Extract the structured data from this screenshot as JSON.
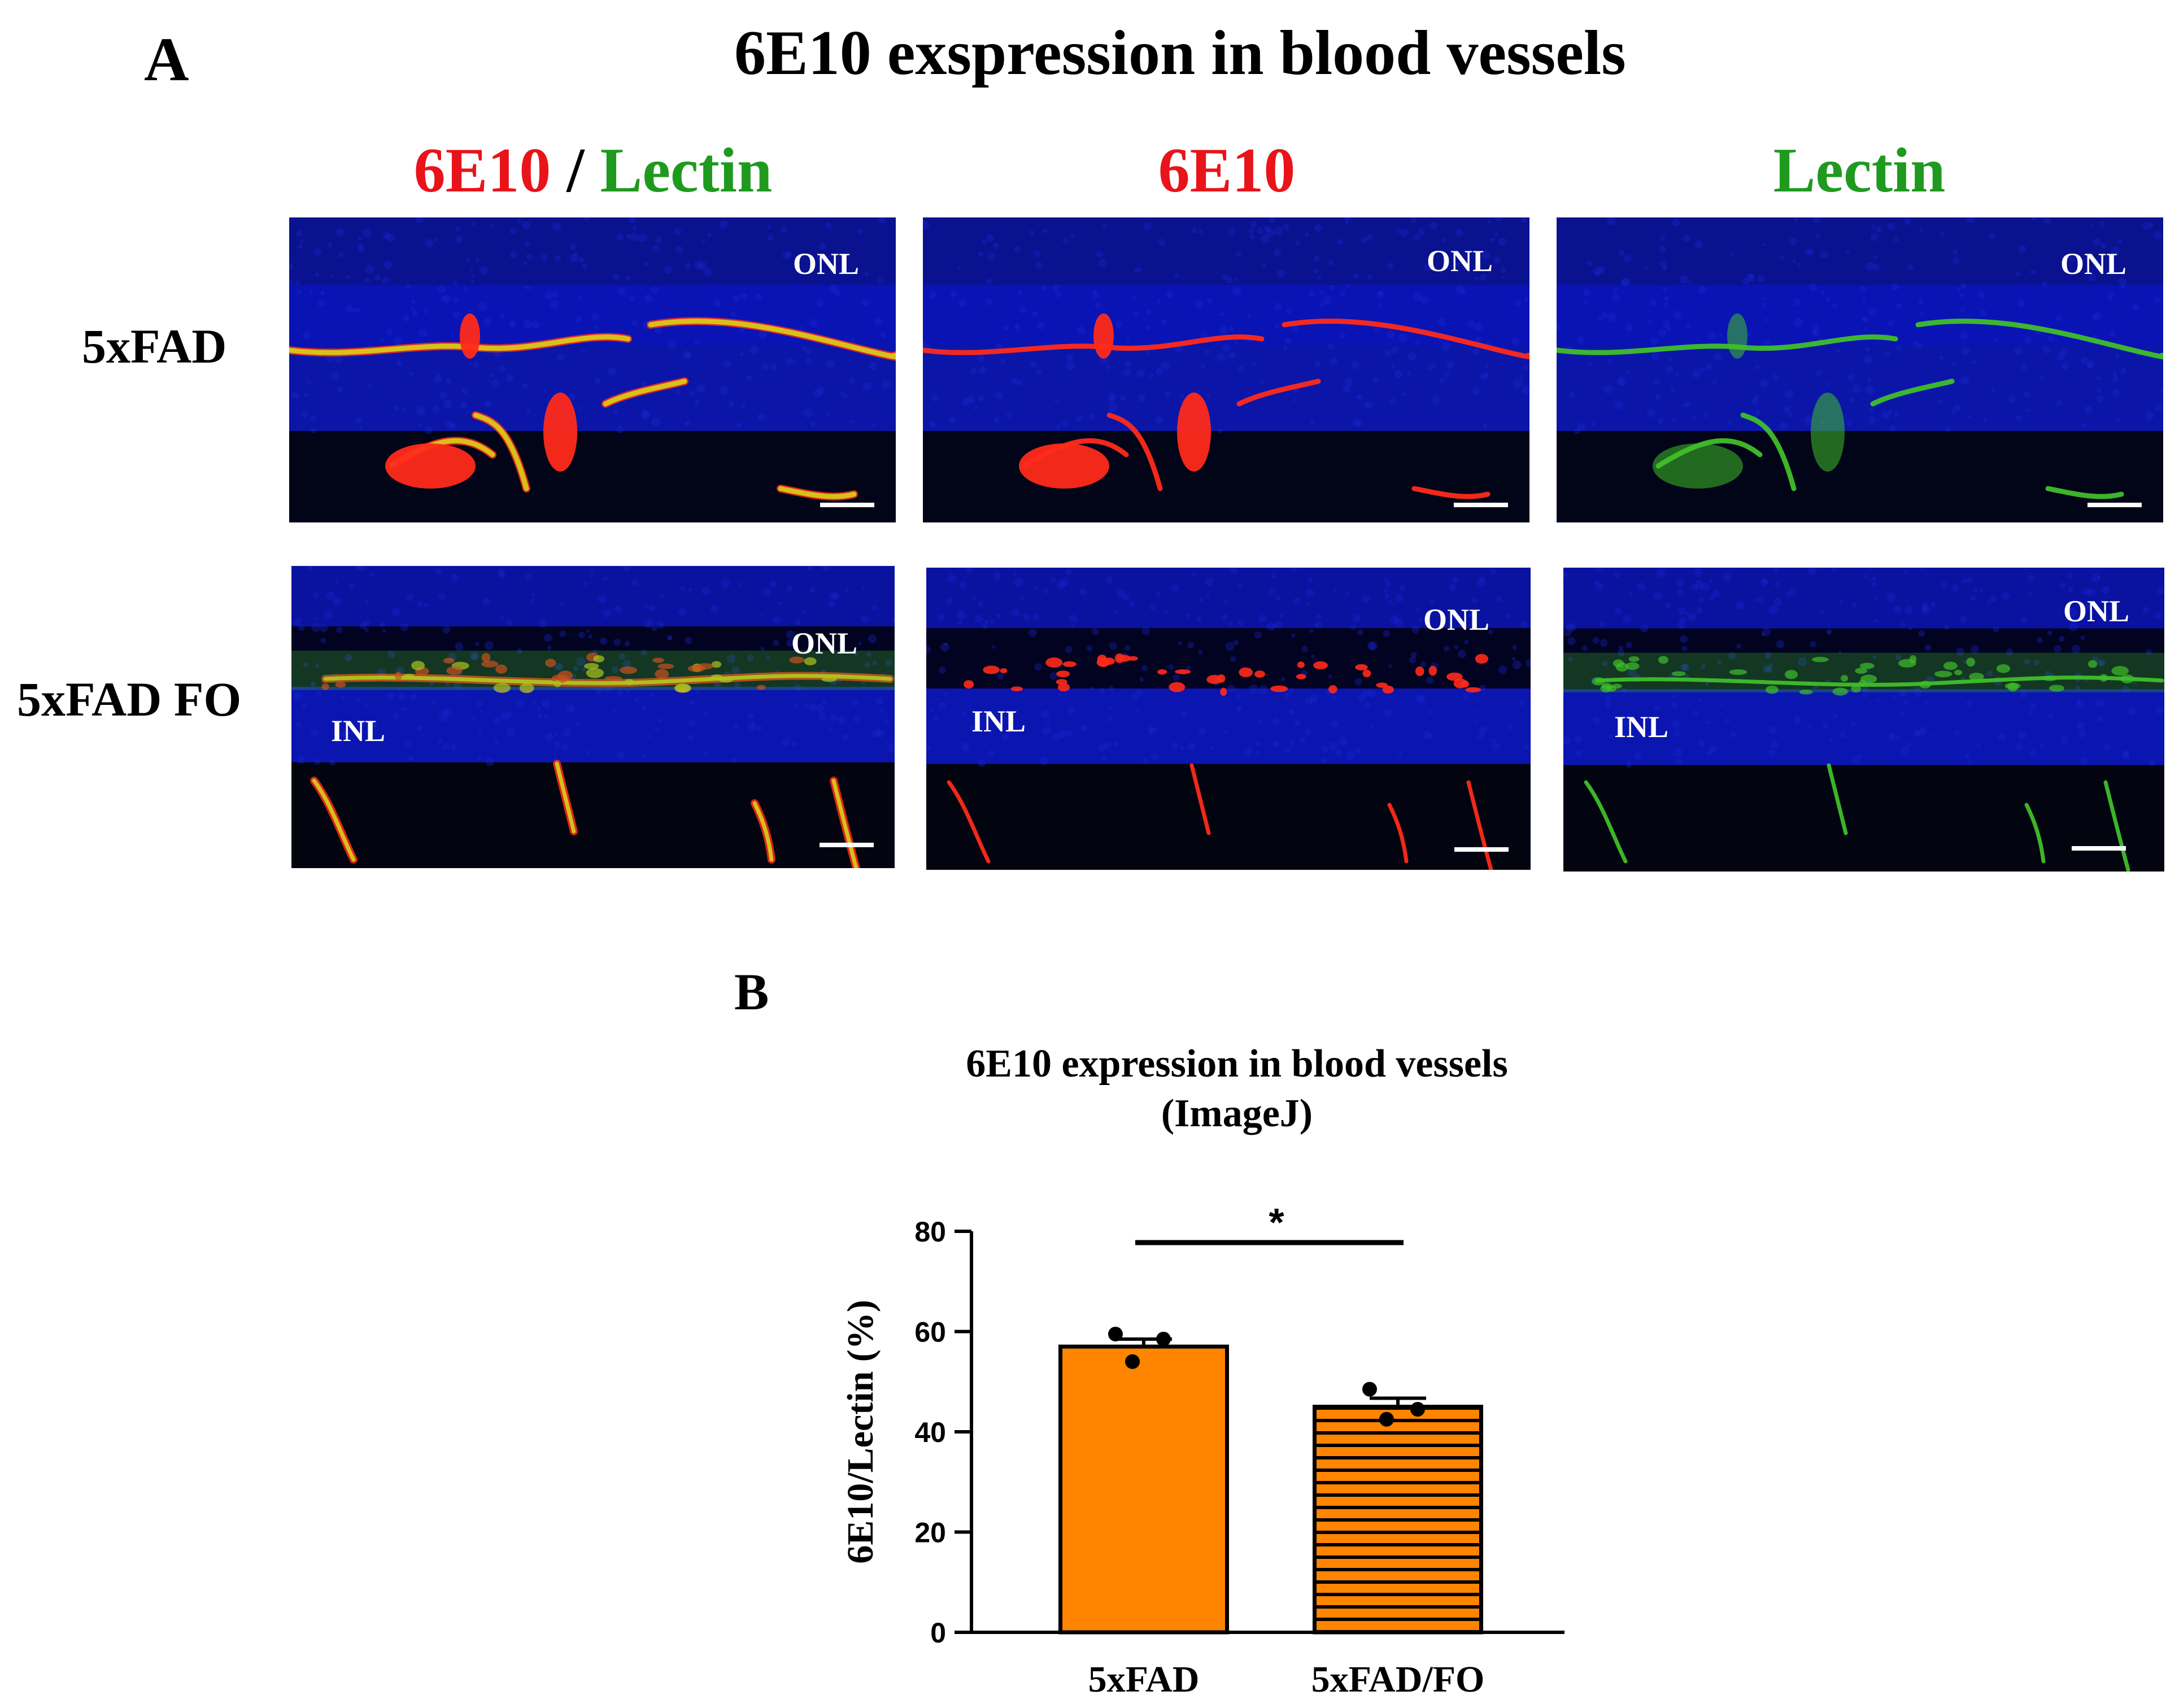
{
  "panel_a": {
    "letter": "A",
    "title": "6E10 exspression in blood vessels",
    "column_headers": [
      {
        "parts": [
          {
            "text": "6E10",
            "color": "#e8141a"
          },
          {
            "text": " / ",
            "color": "#000000"
          },
          {
            "text": "Lectin",
            "color": "#1f9a1f"
          }
        ]
      },
      {
        "parts": [
          {
            "text": "6E10",
            "color": "#e8141a"
          }
        ]
      },
      {
        "parts": [
          {
            "text": "Lectin",
            "color": "#1f9a1f"
          }
        ]
      }
    ],
    "row_labels": [
      "5xFAD",
      "5xFAD FO"
    ],
    "layer_labels": {
      "onl": "ONL",
      "inl": "INL"
    },
    "channel_colors": {
      "red": "#ff2a1a",
      "green": "#3fbf2a",
      "merge": "#d8c81a",
      "nuclei": "#0a14b4"
    }
  },
  "panel_b": {
    "letter": "B",
    "title_line1": "6E10 expression in blood vessels",
    "title_line2": "(ImageJ)"
  },
  "chart_data": {
    "type": "bar",
    "title": "6E10 expression in blood vessels (ImageJ)",
    "categories": [
      "5xFAD",
      "5xFAD/FO"
    ],
    "values": [
      57,
      45
    ],
    "errors": [
      1.5,
      1.7
    ],
    "points": [
      [
        59.5,
        54,
        58.5
      ],
      [
        48.5,
        42.5,
        44.5
      ]
    ],
    "patterns": [
      "solid",
      "horizontal-stripes"
    ],
    "bar_color": "#ff8400",
    "ylabel": "6E10/Lectin (%)",
    "xlabel": "",
    "ylim": [
      0,
      80
    ],
    "yticks": [
      0,
      20,
      40,
      60,
      80
    ],
    "significance": {
      "between": [
        0,
        1
      ],
      "label": "*"
    },
    "grid": false,
    "legend": "none"
  }
}
